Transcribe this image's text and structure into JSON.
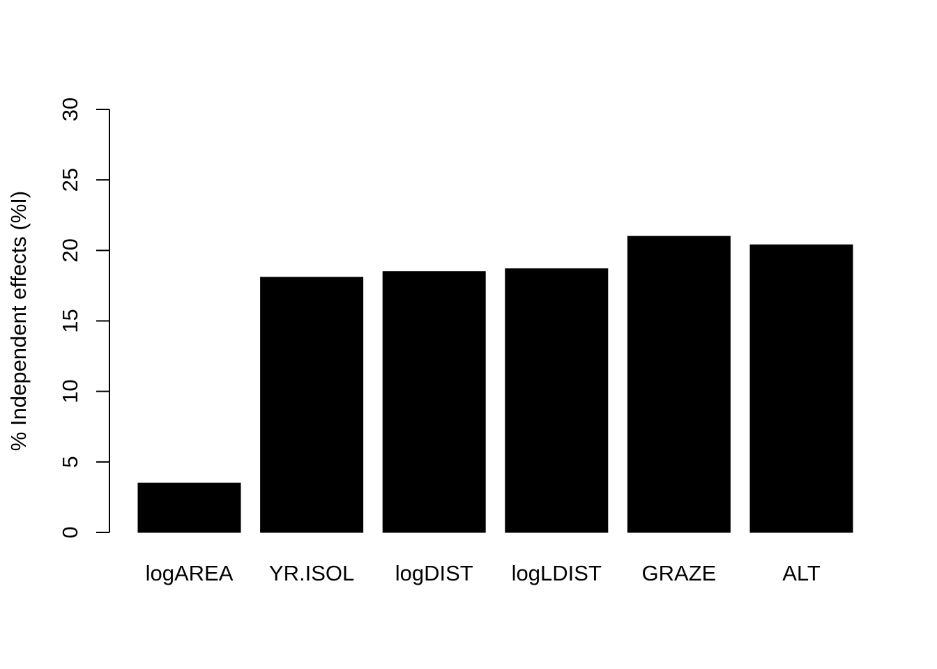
{
  "chart_data": {
    "type": "bar",
    "title": "",
    "xlabel": "",
    "ylabel": "% Independent effects (%I)",
    "categories": [
      "logAREA",
      "YR.ISOL",
      "logDIST",
      "logLDIST",
      "GRAZE",
      "ALT"
    ],
    "values": [
      3.5,
      18.1,
      18.5,
      18.7,
      21.0,
      20.4
    ],
    "ylim": [
      0,
      30
    ],
    "yticks": [
      0,
      5,
      10,
      15,
      20,
      25,
      30
    ],
    "grid": false,
    "legend": "none",
    "bar_color": "#000000",
    "axis_color": "#000000"
  }
}
